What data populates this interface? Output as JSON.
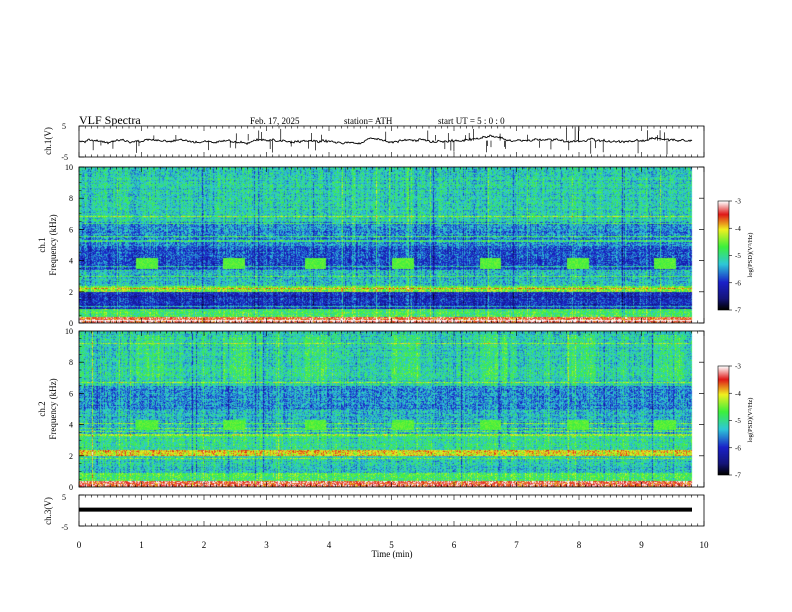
{
  "header": {
    "title": "VLF  Spectra",
    "date": "Feb. 17, 2025",
    "station": "station= ATH",
    "start": "start  UT  =    5  : 0   : 0"
  },
  "colors": {
    "spec_low": "#000000",
    "spec_blue": "#1a20c8",
    "spec_cyan": "#2ec8d8",
    "spec_green": "#3cf03c",
    "spec_yellow": "#f0f020",
    "spec_red": "#e01818",
    "line": "#000000"
  },
  "chart_data": [
    {
      "id": "ch1-waveform",
      "type": "line",
      "ylabel": "ch.1(V)",
      "ylim": [
        -5,
        5
      ],
      "yticks": [
        "5",
        "-5"
      ],
      "xlim": [
        0,
        10
      ],
      "baseline_v": 0.3,
      "noise_amplitude_v": 0.6
    },
    {
      "id": "ch1-spectrogram",
      "type": "heatmap",
      "ylabel_line1": "ch.1",
      "ylabel_line2": "Frequency  (kHz)",
      "ylim": [
        0,
        10
      ],
      "yticks": [
        "0",
        "2",
        "4",
        "6",
        "8",
        "10"
      ],
      "xlim": [
        0,
        10
      ],
      "tone_bursts_min": [
        0.9,
        2.3,
        3.6,
        5.0,
        6.4,
        7.8,
        9.2
      ],
      "tone_band_khz": [
        3.5,
        4.2
      ],
      "colorbar": {
        "label": "log(PSD)(V²/Hz)",
        "ticks": [
          "-3",
          "-4",
          "-5",
          "-6",
          "-7"
        ],
        "range": [
          -7,
          -3
        ]
      }
    },
    {
      "id": "ch2-spectrogram",
      "type": "heatmap",
      "ylabel_line1": "ch.2",
      "ylabel_line2": "Frequency  (kHz)",
      "ylim": [
        0,
        10
      ],
      "yticks": [
        "0",
        "2",
        "4",
        "6",
        "8",
        "10"
      ],
      "xlim": [
        0,
        10
      ],
      "tone_bursts_min": [
        0.9,
        2.3,
        3.6,
        5.0,
        6.4,
        7.8,
        9.2
      ],
      "tone_band_khz": [
        3.7,
        4.3
      ],
      "colorbar": {
        "label": "log(PSD)(V²/Hz)",
        "ticks": [
          "-3",
          "-4",
          "-5",
          "-6",
          "-7"
        ],
        "range": [
          -7,
          -3
        ]
      }
    },
    {
      "id": "ch3-waveform",
      "type": "line",
      "ylabel": "ch.3(V)",
      "ylim": [
        -5,
        5
      ],
      "yticks": [
        "5",
        "-5"
      ],
      "xlim": [
        0,
        10
      ],
      "baseline_v": 0.3,
      "noise_amplitude_v": 0.05
    }
  ],
  "xaxis": {
    "label": "Time  (min)",
    "ticks": [
      "0",
      "1",
      "2",
      "3",
      "4",
      "5",
      "6",
      "7",
      "8",
      "9",
      "10"
    ],
    "data_end_min": 9.8
  }
}
